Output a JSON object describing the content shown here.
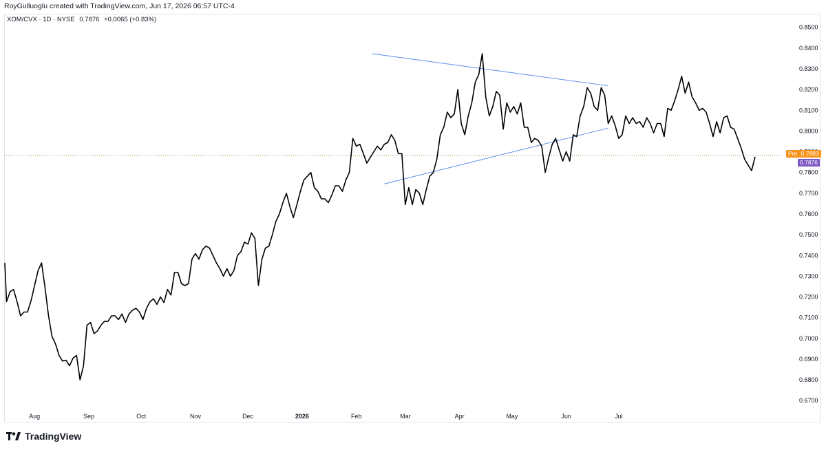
{
  "header": {
    "attribution": "RoyGulluoglu created with TradingView.com, Jun 17, 2026 06:57 UTC-4"
  },
  "legend": {
    "symbol": "XOM/CVX",
    "description": "XOM/CVX · 1D · NYSE",
    "last": "0.7876",
    "change": "+0.0065 (+0.83%)"
  },
  "tags": {
    "pre_label": "Pre",
    "pre_value": "0.7883",
    "last_value": "0.7876",
    "pre_color": "#f7931a",
    "last_color": "#7e57c2"
  },
  "brand": {
    "name": "TradingView",
    "icon": "tradingview-logo-icon"
  },
  "colors": {
    "line": "#000000",
    "trendline": "#5b8def",
    "dotted": "#b08a4a"
  },
  "chart_data": {
    "type": "line",
    "title": "XOM/CVX · 1D · NYSE",
    "ylim": [
      0.6661,
      0.8562
    ],
    "y_ticks": [
      "0.8500",
      "0.8400",
      "0.8300",
      "0.8200",
      "0.8100",
      "0.8000",
      "0.7900",
      "0.7800",
      "0.7700",
      "0.7600",
      "0.7500",
      "0.7400",
      "0.7300",
      "0.7200",
      "0.7100",
      "0.7000",
      "0.6900",
      "0.6800",
      "0.6700"
    ],
    "x_ticks": [
      {
        "label": "Aug",
        "x": "2025-08-01"
      },
      {
        "label": "Sep",
        "x": "2025-09-01"
      },
      {
        "label": "Oct",
        "x": "2025-10-01"
      },
      {
        "label": "Nov",
        "x": "2025-11-01"
      },
      {
        "label": "Dec",
        "x": "2025-12-01"
      },
      {
        "label": "2026",
        "x": "2026-01-01",
        "bold": true
      },
      {
        "label": "Feb",
        "x": "2026-02-01"
      },
      {
        "label": "Mar",
        "x": "2026-03-01"
      },
      {
        "label": "Apr",
        "x": "2026-04-01"
      },
      {
        "label": "May",
        "x": "2026-05-01"
      },
      {
        "label": "Jun",
        "x": "2026-06-01"
      },
      {
        "label": "Jul",
        "x": "2026-07-01"
      }
    ],
    "series": [
      {
        "name": "XOM/CVX",
        "points": [
          [
            "2025-07-15",
            0.7364
          ],
          [
            "2025-07-16",
            0.7177
          ],
          [
            "2025-07-18",
            0.7225
          ],
          [
            "2025-07-20",
            0.7236
          ],
          [
            "2025-07-22",
            0.7177
          ],
          [
            "2025-07-24",
            0.7109
          ],
          [
            "2025-07-26",
            0.7127
          ],
          [
            "2025-07-28",
            0.7127
          ],
          [
            "2025-07-30",
            0.7182
          ],
          [
            "2025-08-03",
            0.7327
          ],
          [
            "2025-08-05",
            0.7364
          ],
          [
            "2025-08-07",
            0.7245
          ],
          [
            "2025-08-09",
            0.7109
          ],
          [
            "2025-08-11",
            0.7009
          ],
          [
            "2025-08-13",
            0.6973
          ],
          [
            "2025-08-15",
            0.6918
          ],
          [
            "2025-08-17",
            0.6891
          ],
          [
            "2025-08-19",
            0.6895
          ],
          [
            "2025-08-21",
            0.6868
          ],
          [
            "2025-08-23",
            0.6905
          ],
          [
            "2025-08-25",
            0.6918
          ],
          [
            "2025-08-27",
            0.68
          ],
          [
            "2025-08-29",
            0.6868
          ],
          [
            "2025-08-31",
            0.7064
          ],
          [
            "2025-09-02",
            0.7077
          ],
          [
            "2025-09-04",
            0.7023
          ],
          [
            "2025-09-06",
            0.7036
          ],
          [
            "2025-09-08",
            0.7064
          ],
          [
            "2025-09-10",
            0.7082
          ],
          [
            "2025-09-12",
            0.7082
          ],
          [
            "2025-09-14",
            0.7109
          ],
          [
            "2025-09-16",
            0.7109
          ],
          [
            "2025-09-18",
            0.7091
          ],
          [
            "2025-09-20",
            0.7118
          ],
          [
            "2025-09-22",
            0.7077
          ],
          [
            "2025-09-24",
            0.7118
          ],
          [
            "2025-09-26",
            0.7136
          ],
          [
            "2025-09-28",
            0.7145
          ],
          [
            "2025-09-30",
            0.7127
          ],
          [
            "2025-10-02",
            0.7091
          ],
          [
            "2025-10-04",
            0.7145
          ],
          [
            "2025-10-06",
            0.7177
          ],
          [
            "2025-10-08",
            0.7191
          ],
          [
            "2025-10-10",
            0.7164
          ],
          [
            "2025-10-12",
            0.72
          ],
          [
            "2025-10-14",
            0.7173
          ],
          [
            "2025-10-16",
            0.7236
          ],
          [
            "2025-10-18",
            0.7209
          ],
          [
            "2025-10-20",
            0.7318
          ],
          [
            "2025-10-22",
            0.7318
          ],
          [
            "2025-10-24",
            0.7264
          ],
          [
            "2025-10-26",
            0.7255
          ],
          [
            "2025-10-28",
            0.7264
          ],
          [
            "2025-10-30",
            0.7382
          ],
          [
            "2025-11-01",
            0.7409
          ],
          [
            "2025-11-03",
            0.7382
          ],
          [
            "2025-11-05",
            0.7427
          ],
          [
            "2025-11-07",
            0.7445
          ],
          [
            "2025-11-09",
            0.7436
          ],
          [
            "2025-11-11",
            0.74
          ],
          [
            "2025-11-13",
            0.7364
          ],
          [
            "2025-11-15",
            0.7336
          ],
          [
            "2025-11-17",
            0.73
          ],
          [
            "2025-11-19",
            0.7336
          ],
          [
            "2025-11-21",
            0.73
          ],
          [
            "2025-11-23",
            0.7327
          ],
          [
            "2025-11-25",
            0.74
          ],
          [
            "2025-11-27",
            0.7418
          ],
          [
            "2025-11-29",
            0.7464
          ],
          [
            "2025-12-01",
            0.7455
          ],
          [
            "2025-12-03",
            0.7509
          ],
          [
            "2025-12-05",
            0.7482
          ],
          [
            "2025-12-07",
            0.7255
          ],
          [
            "2025-12-09",
            0.7382
          ],
          [
            "2025-12-11",
            0.7436
          ],
          [
            "2025-12-13",
            0.7445
          ],
          [
            "2025-12-15",
            0.75
          ],
          [
            "2025-12-17",
            0.7564
          ],
          [
            "2025-12-19",
            0.76
          ],
          [
            "2025-12-21",
            0.7655
          ],
          [
            "2025-12-23",
            0.77
          ],
          [
            "2025-12-25",
            0.7636
          ],
          [
            "2025-12-27",
            0.7582
          ],
          [
            "2025-12-29",
            0.7645
          ],
          [
            "2025-12-31",
            0.7709
          ],
          [
            "2026-01-02",
            0.7764
          ],
          [
            "2026-01-04",
            0.7782
          ],
          [
            "2026-01-06",
            0.78
          ],
          [
            "2026-01-08",
            0.7727
          ],
          [
            "2026-01-10",
            0.7709
          ],
          [
            "2026-01-12",
            0.7673
          ],
          [
            "2026-01-14",
            0.7673
          ],
          [
            "2026-01-16",
            0.7655
          ],
          [
            "2026-01-18",
            0.7691
          ],
          [
            "2026-01-20",
            0.7736
          ],
          [
            "2026-01-22",
            0.7736
          ],
          [
            "2026-01-24",
            0.7709
          ],
          [
            "2026-01-26",
            0.7764
          ],
          [
            "2026-01-28",
            0.78
          ],
          [
            "2026-01-30",
            0.7964
          ],
          [
            "2026-02-01",
            0.7927
          ],
          [
            "2026-02-03",
            0.7936
          ],
          [
            "2026-02-05",
            0.7891
          ],
          [
            "2026-02-07",
            0.7845
          ],
          [
            "2026-02-09",
            0.7873
          ],
          [
            "2026-02-11",
            0.79
          ],
          [
            "2026-02-13",
            0.7927
          ],
          [
            "2026-02-15",
            0.7909
          ],
          [
            "2026-02-17",
            0.7936
          ],
          [
            "2026-02-19",
            0.7945
          ],
          [
            "2026-02-21",
            0.7982
          ],
          [
            "2026-02-23",
            0.7955
          ],
          [
            "2026-02-25",
            0.7891
          ],
          [
            "2026-02-27",
            0.7891
          ],
          [
            "2026-03-01",
            0.7645
          ],
          [
            "2026-03-03",
            0.7727
          ],
          [
            "2026-03-05",
            0.7645
          ],
          [
            "2026-03-07",
            0.7718
          ],
          [
            "2026-03-09",
            0.77
          ],
          [
            "2026-03-11",
            0.7645
          ],
          [
            "2026-03-13",
            0.7718
          ],
          [
            "2026-03-15",
            0.7782
          ],
          [
            "2026-03-17",
            0.78
          ],
          [
            "2026-03-19",
            0.7864
          ],
          [
            "2026-03-21",
            0.7982
          ],
          [
            "2026-03-23",
            0.8018
          ],
          [
            "2026-03-25",
            0.8091
          ],
          [
            "2026-03-27",
            0.8064
          ],
          [
            "2026-03-29",
            0.8082
          ],
          [
            "2026-03-31",
            0.82
          ],
          [
            "2026-04-02",
            0.8036
          ],
          [
            "2026-04-04",
            0.7982
          ],
          [
            "2026-04-06",
            0.8073
          ],
          [
            "2026-04-08",
            0.8136
          ],
          [
            "2026-04-10",
            0.8236
          ],
          [
            "2026-04-12",
            0.8273
          ],
          [
            "2026-04-14",
            0.8373
          ],
          [
            "2026-04-16",
            0.8164
          ],
          [
            "2026-04-18",
            0.8073
          ],
          [
            "2026-04-20",
            0.8118
          ],
          [
            "2026-04-22",
            0.8191
          ],
          [
            "2026-04-24",
            0.8173
          ],
          [
            "2026-04-26",
            0.8009
          ],
          [
            "2026-04-28",
            0.8136
          ],
          [
            "2026-04-30",
            0.8091
          ],
          [
            "2026-05-02",
            0.8118
          ],
          [
            "2026-05-04",
            0.8082
          ],
          [
            "2026-05-06",
            0.8136
          ],
          [
            "2026-05-08",
            0.8018
          ],
          [
            "2026-05-10",
            0.8018
          ],
          [
            "2026-05-12",
            0.7945
          ],
          [
            "2026-05-14",
            0.7964
          ],
          [
            "2026-05-16",
            0.7955
          ],
          [
            "2026-05-18",
            0.7927
          ],
          [
            "2026-05-20",
            0.78
          ],
          [
            "2026-05-22",
            0.7873
          ],
          [
            "2026-05-24",
            0.7936
          ],
          [
            "2026-05-26",
            0.7964
          ],
          [
            "2026-05-28",
            0.7909
          ],
          [
            "2026-05-30",
            0.7855
          ],
          [
            "2026-06-01",
            0.79
          ],
          [
            "2026-06-03",
            0.7855
          ],
          [
            "2026-06-05",
            0.7982
          ],
          [
            "2026-06-07",
            0.7973
          ],
          [
            "2026-06-09",
            0.8073
          ],
          [
            "2026-06-11",
            0.8118
          ],
          [
            "2026-06-13",
            0.8209
          ],
          [
            "2026-06-15",
            0.8182
          ],
          [
            "2026-06-17",
            0.8118
          ],
          [
            "2026-06-19",
            0.81
          ],
          [
            "2026-06-21",
            0.8209
          ],
          [
            "2026-06-23",
            0.8173
          ],
          [
            "2026-06-25",
            0.8036
          ],
          [
            "2026-06-27",
            0.8073
          ],
          [
            "2026-06-29",
            0.8027
          ],
          [
            "2026-07-01",
            0.7964
          ],
          [
            "2026-07-03",
            0.7982
          ],
          [
            "2026-07-05",
            0.8073
          ],
          [
            "2026-07-07",
            0.8036
          ],
          [
            "2026-07-09",
            0.8064
          ],
          [
            "2026-07-11",
            0.8036
          ],
          [
            "2026-07-13",
            0.8045
          ],
          [
            "2026-07-15",
            0.8018
          ],
          [
            "2026-07-17",
            0.8064
          ],
          [
            "2026-07-19",
            0.8036
          ],
          [
            "2026-07-21",
            0.7991
          ],
          [
            "2026-07-23",
            0.8036
          ],
          [
            "2026-07-25",
            0.8036
          ],
          [
            "2026-07-27",
            0.7973
          ],
          [
            "2026-07-29",
            0.8109
          ],
          [
            "2026-07-31",
            0.81
          ],
          [
            "2026-08-02",
            0.8145
          ],
          [
            "2026-08-04",
            0.82
          ],
          [
            "2026-08-06",
            0.8264
          ],
          [
            "2026-08-08",
            0.8182
          ],
          [
            "2026-08-10",
            0.8236
          ],
          [
            "2026-08-12",
            0.8164
          ],
          [
            "2026-08-14",
            0.8136
          ],
          [
            "2026-08-16",
            0.81
          ],
          [
            "2026-08-18",
            0.8109
          ],
          [
            "2026-08-20",
            0.8091
          ],
          [
            "2026-08-22",
            0.8036
          ],
          [
            "2026-08-24",
            0.7973
          ],
          [
            "2026-08-26",
            0.8045
          ],
          [
            "2026-08-28",
            0.7991
          ],
          [
            "2026-08-30",
            0.8064
          ],
          [
            "2026-09-01",
            0.8073
          ],
          [
            "2026-09-03",
            0.8018
          ],
          [
            "2026-09-05",
            0.8009
          ],
          [
            "2026-09-07",
            0.7964
          ],
          [
            "2026-09-09",
            0.7918
          ],
          [
            "2026-09-11",
            0.7864
          ],
          [
            "2026-09-13",
            0.7836
          ],
          [
            "2026-09-15",
            0.7809
          ],
          [
            "2026-09-17",
            0.7876
          ]
        ]
      }
    ],
    "trendlines": [
      {
        "from": [
          "2026-02-10",
          0.8373
        ],
        "to": [
          "2026-06-25",
          0.8218
        ]
      },
      {
        "from": [
          "2026-02-17",
          0.7745
        ],
        "to": [
          "2026-06-25",
          0.8014
        ]
      }
    ],
    "horizontal_line": {
      "value": 0.7883,
      "style": "dotted"
    },
    "grid": false
  }
}
